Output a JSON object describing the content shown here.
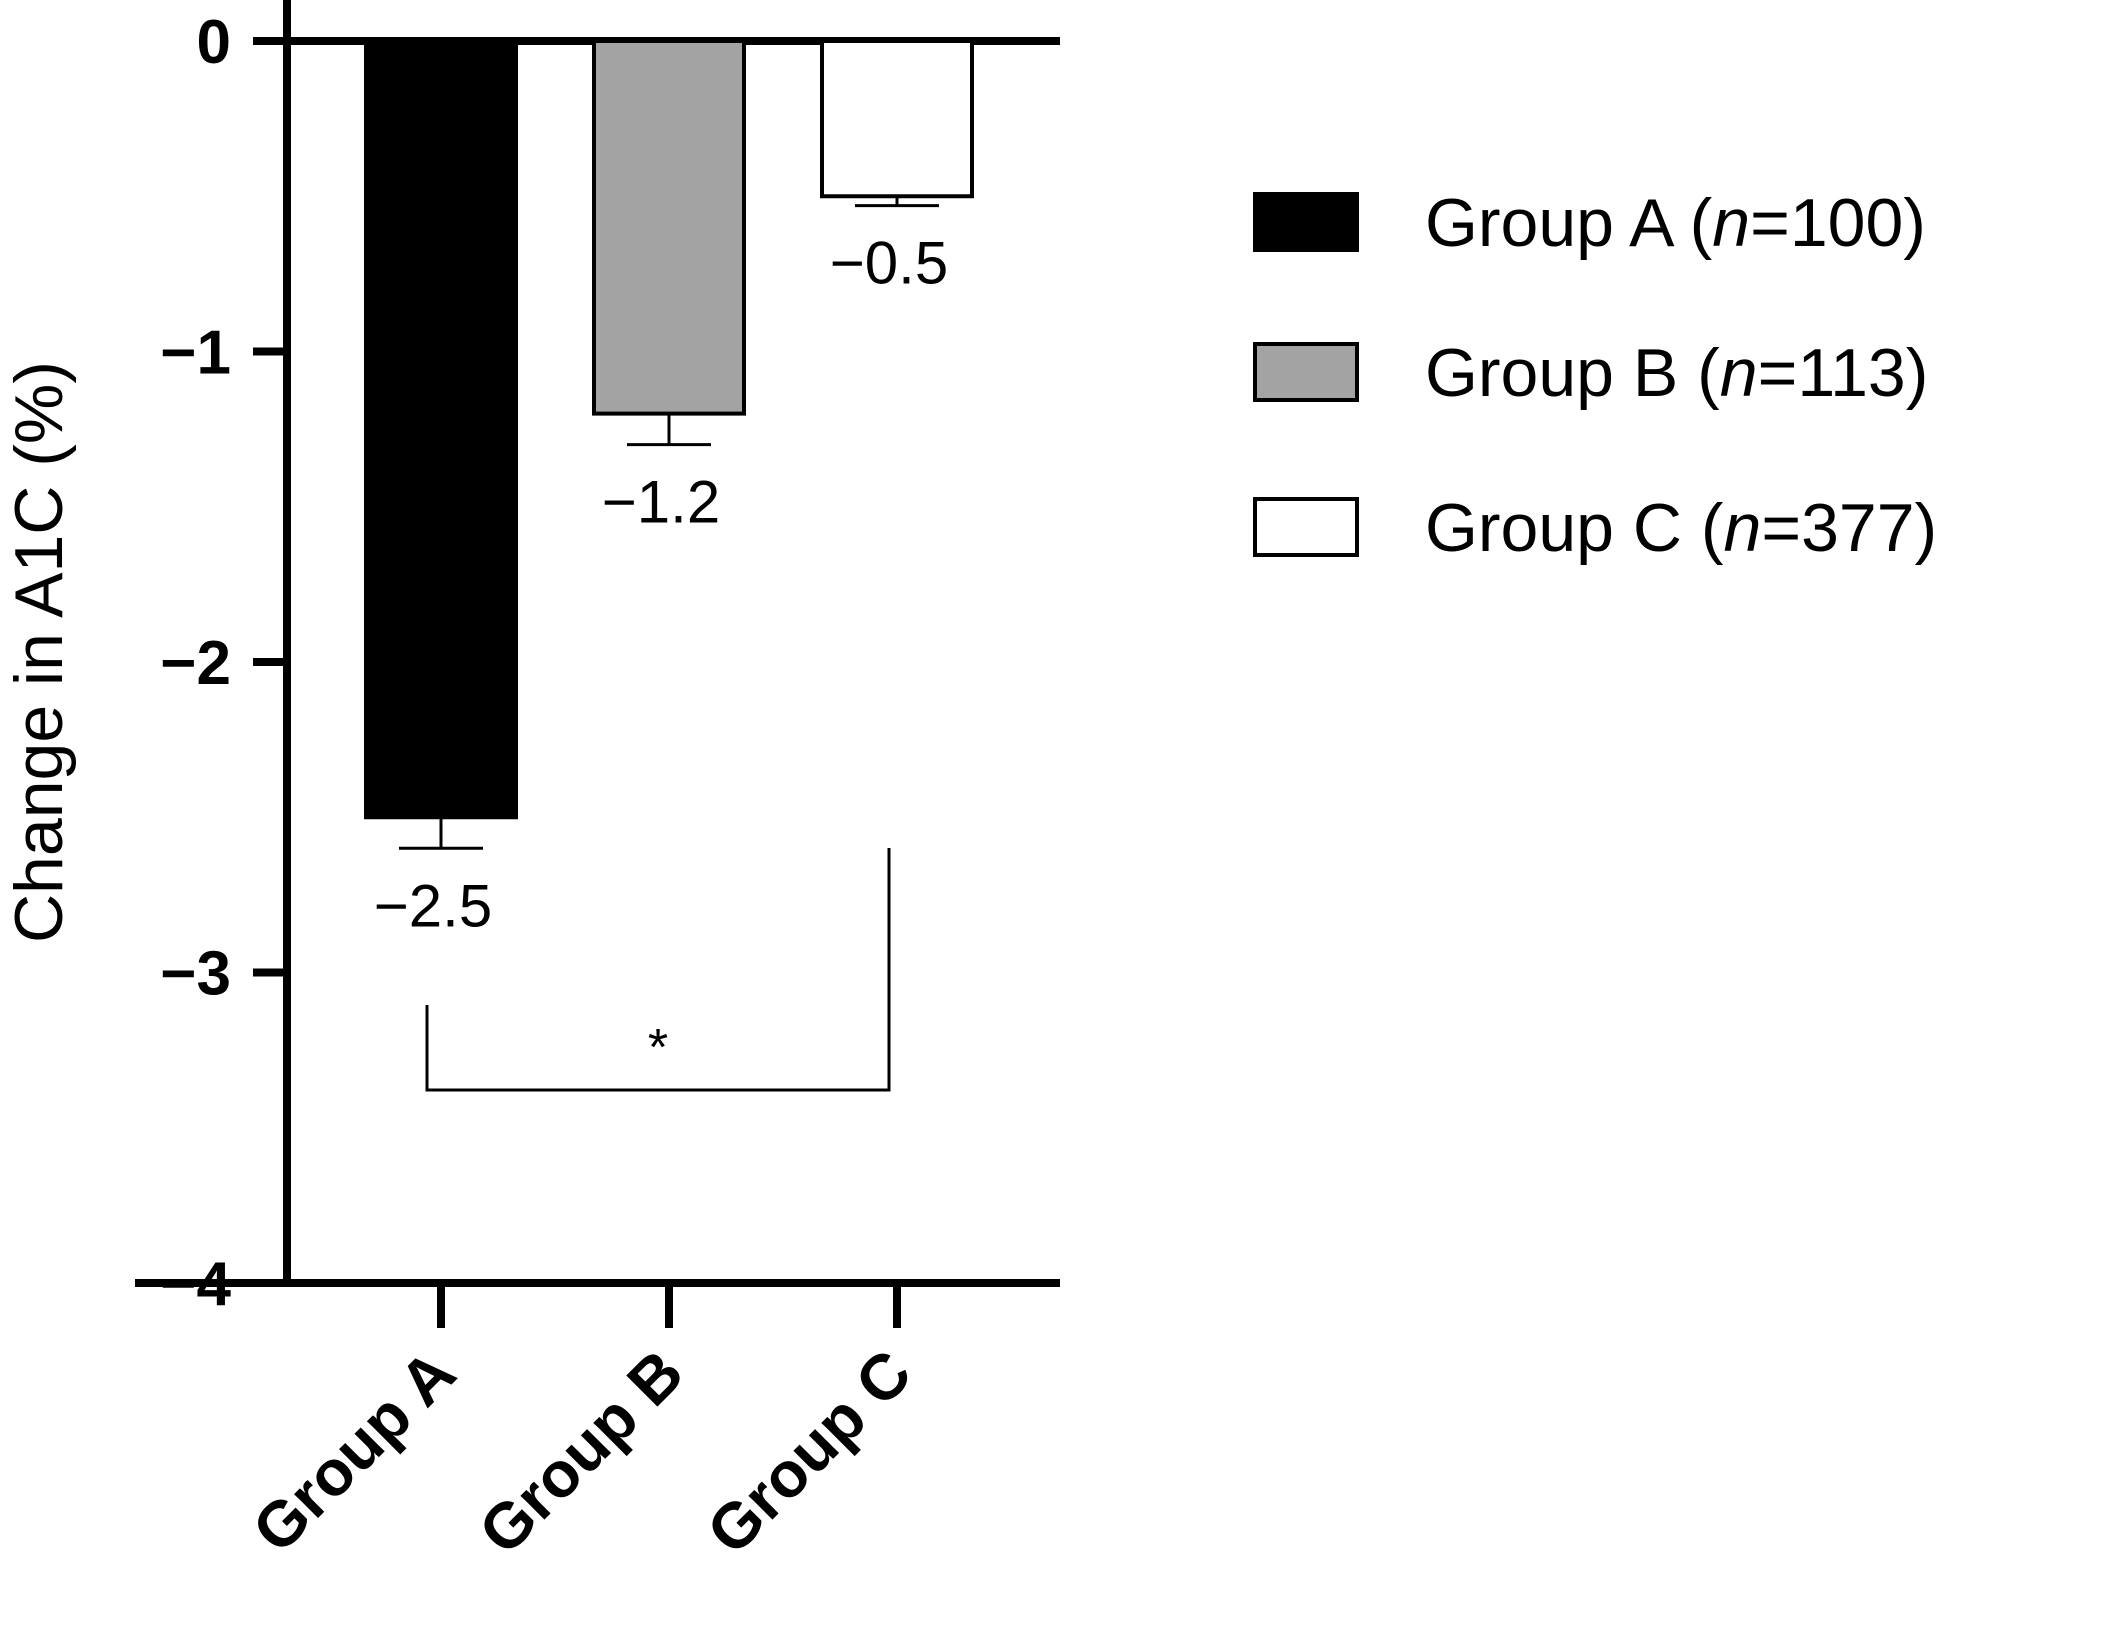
{
  "chart_data": {
    "type": "bar",
    "categories": [
      "Group A",
      "Group B",
      "Group C"
    ],
    "values": [
      -2.5,
      -1.2,
      -0.5
    ],
    "errors": [
      0.1,
      0.1,
      0.03
    ],
    "value_labels": [
      "−2.5",
      "−1.2",
      "−0.5"
    ],
    "colors": [
      "#000000",
      "#a3a3a3",
      "#ffffff"
    ],
    "ylabel": "Change in A1C (%)",
    "xlabel": "",
    "title": "",
    "ylim": [
      -4,
      0
    ],
    "yticks": [
      0,
      -1,
      -2,
      -3,
      -4
    ],
    "ytick_labels": [
      "0",
      "−1",
      "−2",
      "−3",
      "−4"
    ],
    "grid": false,
    "legend": {
      "placement": "top-right",
      "entries": [
        {
          "group": "Group A",
          "n": "100",
          "color": "#000000"
        },
        {
          "group": "Group B",
          "n": "113",
          "color": "#a3a3a3"
        },
        {
          "group": "Group C",
          "n": "377",
          "color": "#ffffff"
        }
      ],
      "n_prefix": "n",
      "n_equals": "=",
      "open_paren": "(",
      "close_paren": ")"
    },
    "significance": {
      "between": [
        "Group A",
        "Group C"
      ],
      "label": "*"
    }
  }
}
